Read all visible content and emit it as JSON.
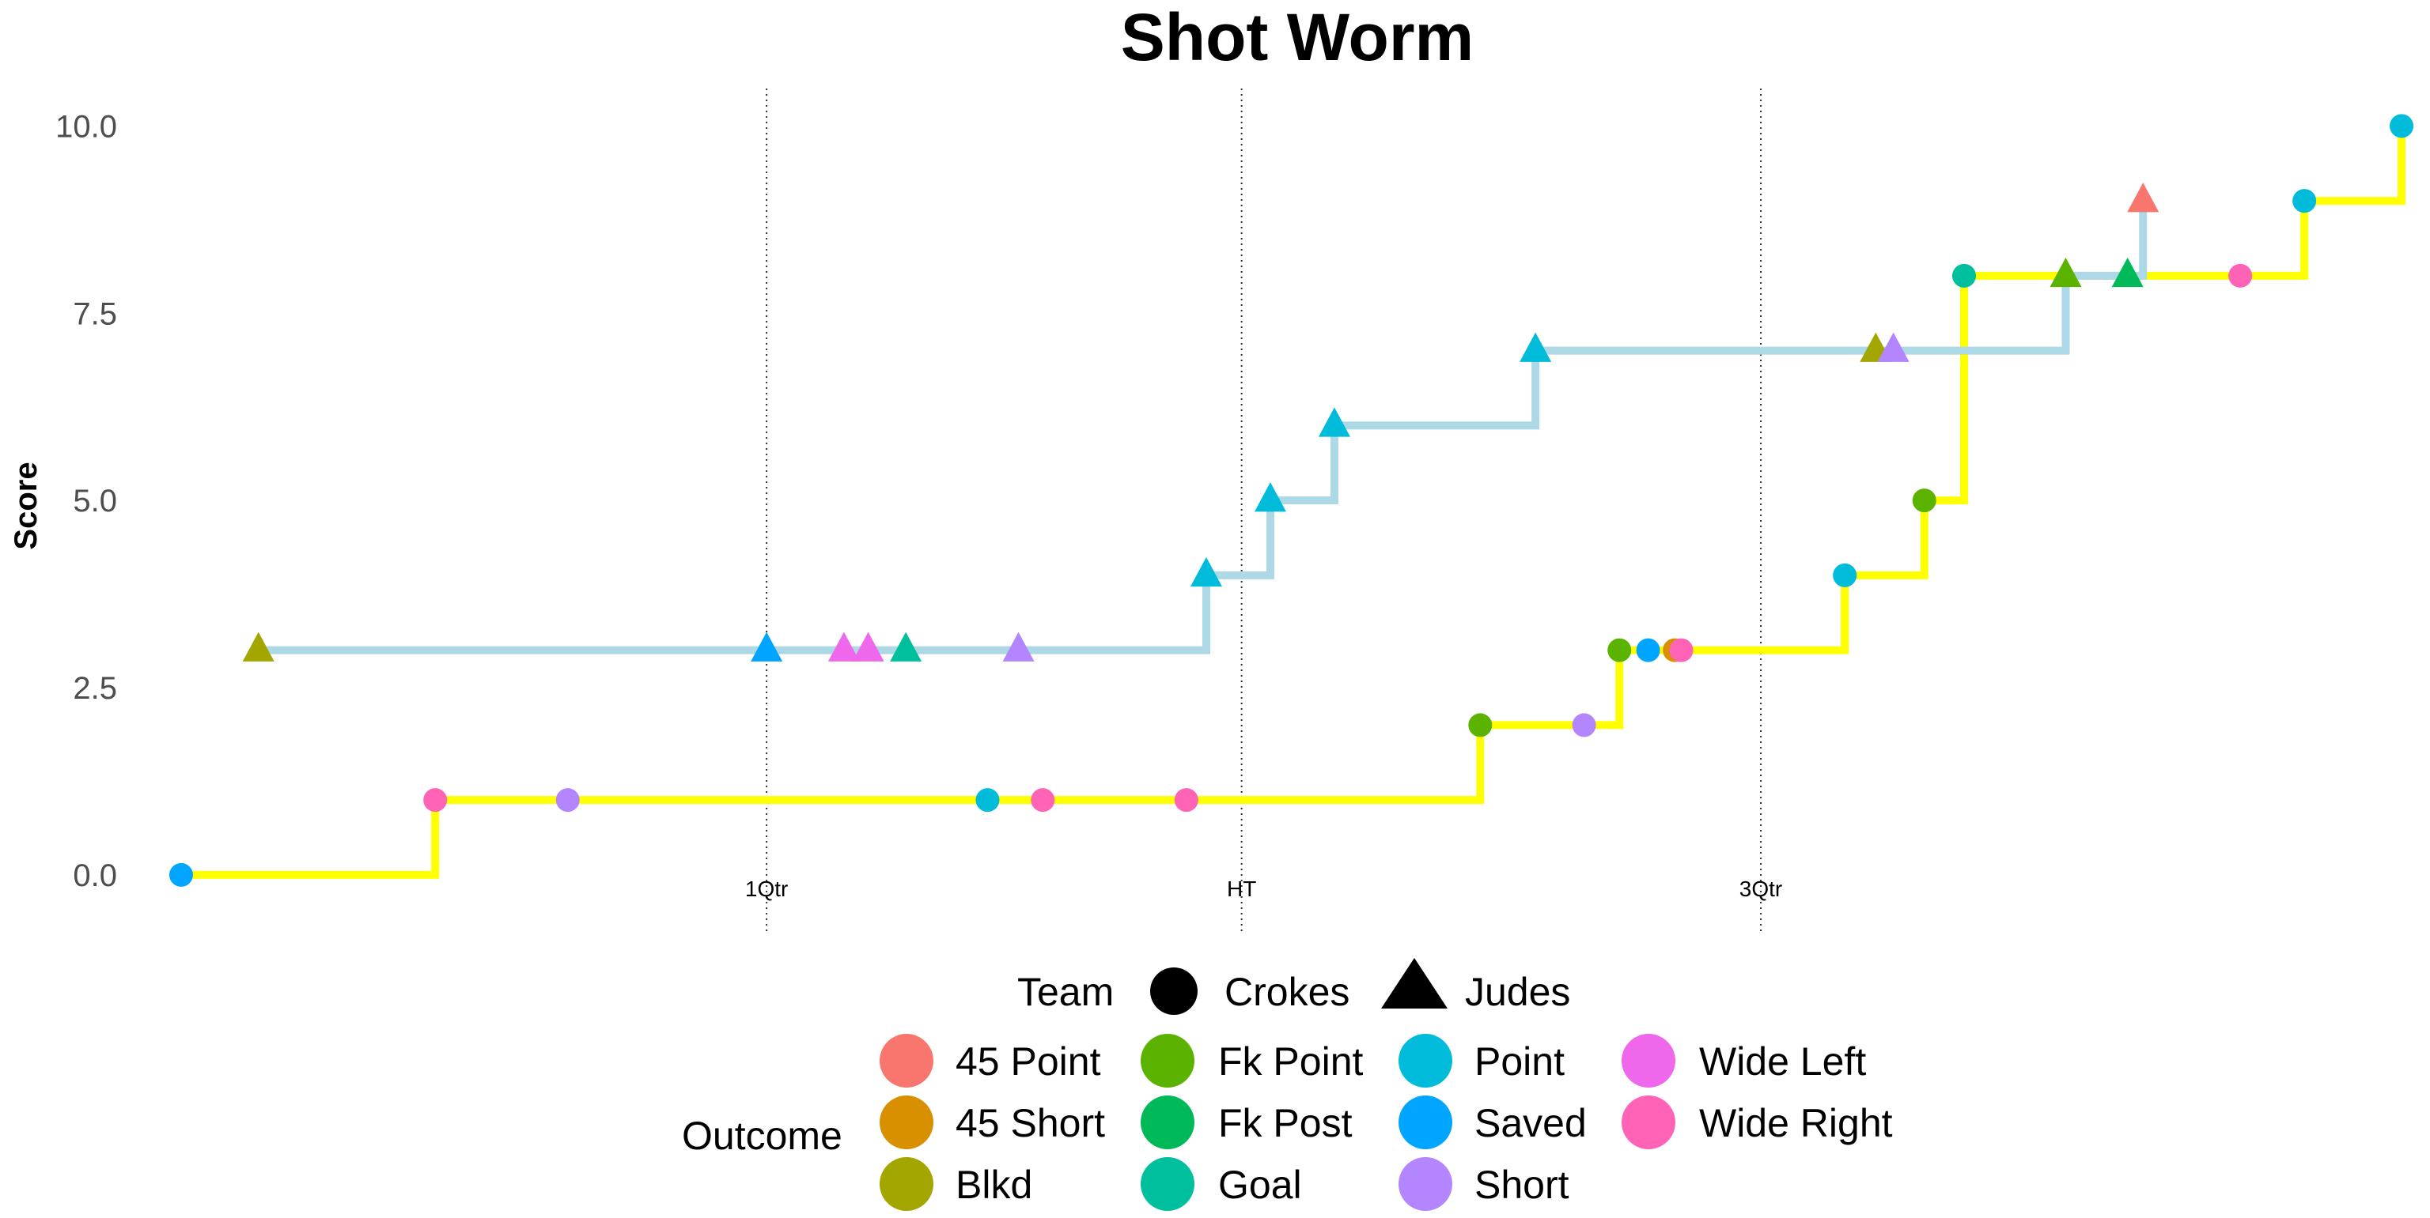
{
  "chart_data": {
    "type": "line",
    "title": "Shot Worm",
    "xlabel": "",
    "ylabel": "Score",
    "ylim": [
      -0.75,
      10.5
    ],
    "xlim": [
      -0.5,
      101
    ],
    "y_ticks": [
      0.0,
      2.5,
      5.0,
      7.5,
      10.0
    ],
    "y_tick_labels": [
      "0.0",
      "2.5",
      "5.0",
      "7.5",
      "10.0"
    ],
    "grid": false,
    "legend_position": "bottom",
    "vlines": [
      {
        "x": 26.5,
        "label": "1Qtr"
      },
      {
        "x": 48,
        "label": "HT"
      },
      {
        "x": 71.5,
        "label": "3Qtr"
      }
    ],
    "series": [
      {
        "name": "Crokes",
        "shape": "circle",
        "line_color": "#FFFF00",
        "points": [
          {
            "x": 0,
            "y": 0,
            "outcome": "Saved"
          },
          {
            "x": 11.5,
            "y": 1,
            "outcome": "Wide Right"
          },
          {
            "x": 17.5,
            "y": 1,
            "outcome": "Short"
          },
          {
            "x": 36.5,
            "y": 1,
            "outcome": "Point"
          },
          {
            "x": 39,
            "y": 1,
            "outcome": "Wide Right"
          },
          {
            "x": 45.5,
            "y": 1,
            "outcome": "Wide Right"
          },
          {
            "x": 58.8,
            "y": 2,
            "outcome": "Fk Point"
          },
          {
            "x": 63.5,
            "y": 2,
            "outcome": "Short"
          },
          {
            "x": 65.1,
            "y": 3,
            "outcome": "Fk Point"
          },
          {
            "x": 66.4,
            "y": 3,
            "outcome": "Saved"
          },
          {
            "x": 67.6,
            "y": 3,
            "outcome": "45 Short"
          },
          {
            "x": 67.9,
            "y": 3,
            "outcome": "Wide Right"
          },
          {
            "x": 75.3,
            "y": 4,
            "outcome": "Point"
          },
          {
            "x": 78.9,
            "y": 5,
            "outcome": "Fk Point"
          },
          {
            "x": 80.7,
            "y": 8,
            "outcome": "Goal"
          },
          {
            "x": 93.2,
            "y": 8,
            "outcome": "Wide Right"
          },
          {
            "x": 96.1,
            "y": 9,
            "outcome": "Point"
          },
          {
            "x": 100.5,
            "y": 10,
            "outcome": "Point"
          }
        ]
      },
      {
        "name": "Judes",
        "shape": "triangle",
        "line_color": "#ADD8E6",
        "points": [
          {
            "x": 3.5,
            "y": 3,
            "outcome": "Blkd"
          },
          {
            "x": 26.5,
            "y": 3,
            "outcome": "Saved"
          },
          {
            "x": 30,
            "y": 3,
            "outcome": "Wide Left"
          },
          {
            "x": 31.1,
            "y": 3,
            "outcome": "Wide Left"
          },
          {
            "x": 32.8,
            "y": 3,
            "outcome": "Goal"
          },
          {
            "x": 37.9,
            "y": 3,
            "outcome": "Short"
          },
          {
            "x": 46.4,
            "y": 4,
            "outcome": "Point"
          },
          {
            "x": 49.3,
            "y": 5,
            "outcome": "Point"
          },
          {
            "x": 52.2,
            "y": 6,
            "outcome": "Point"
          },
          {
            "x": 61.3,
            "y": 7,
            "outcome": "Point"
          },
          {
            "x": 76.7,
            "y": 7,
            "outcome": "Blkd"
          },
          {
            "x": 77.5,
            "y": 7,
            "outcome": "Short"
          },
          {
            "x": 85.3,
            "y": 8,
            "outcome": "Fk Point"
          },
          {
            "x": 88.1,
            "y": 8,
            "outcome": "Fk Post"
          },
          {
            "x": 88.8,
            "y": 9,
            "outcome": "45 Point"
          }
        ]
      }
    ],
    "legend": {
      "team": {
        "title": "Team",
        "items": [
          {
            "label": "Crokes",
            "shape": "circle"
          },
          {
            "label": "Judes",
            "shape": "triangle"
          }
        ]
      },
      "outcome": {
        "title": "Outcome",
        "items": [
          {
            "label": "45 Point",
            "color": "#F8766D"
          },
          {
            "label": "45 Short",
            "color": "#D89000"
          },
          {
            "label": "Blkd",
            "color": "#A3A500"
          },
          {
            "label": "Fk Point",
            "color": "#5BB300"
          },
          {
            "label": "Fk Post",
            "color": "#00BA5A"
          },
          {
            "label": "Goal",
            "color": "#00BF9C"
          },
          {
            "label": "Point",
            "color": "#00BBDA"
          },
          {
            "label": "Saved",
            "color": "#00A5FF"
          },
          {
            "label": "Short",
            "color": "#B385FF"
          },
          {
            "label": "Wide Left",
            "color": "#EF67EB"
          },
          {
            "label": "Wide Right",
            "color": "#FF63B6"
          }
        ]
      }
    }
  }
}
